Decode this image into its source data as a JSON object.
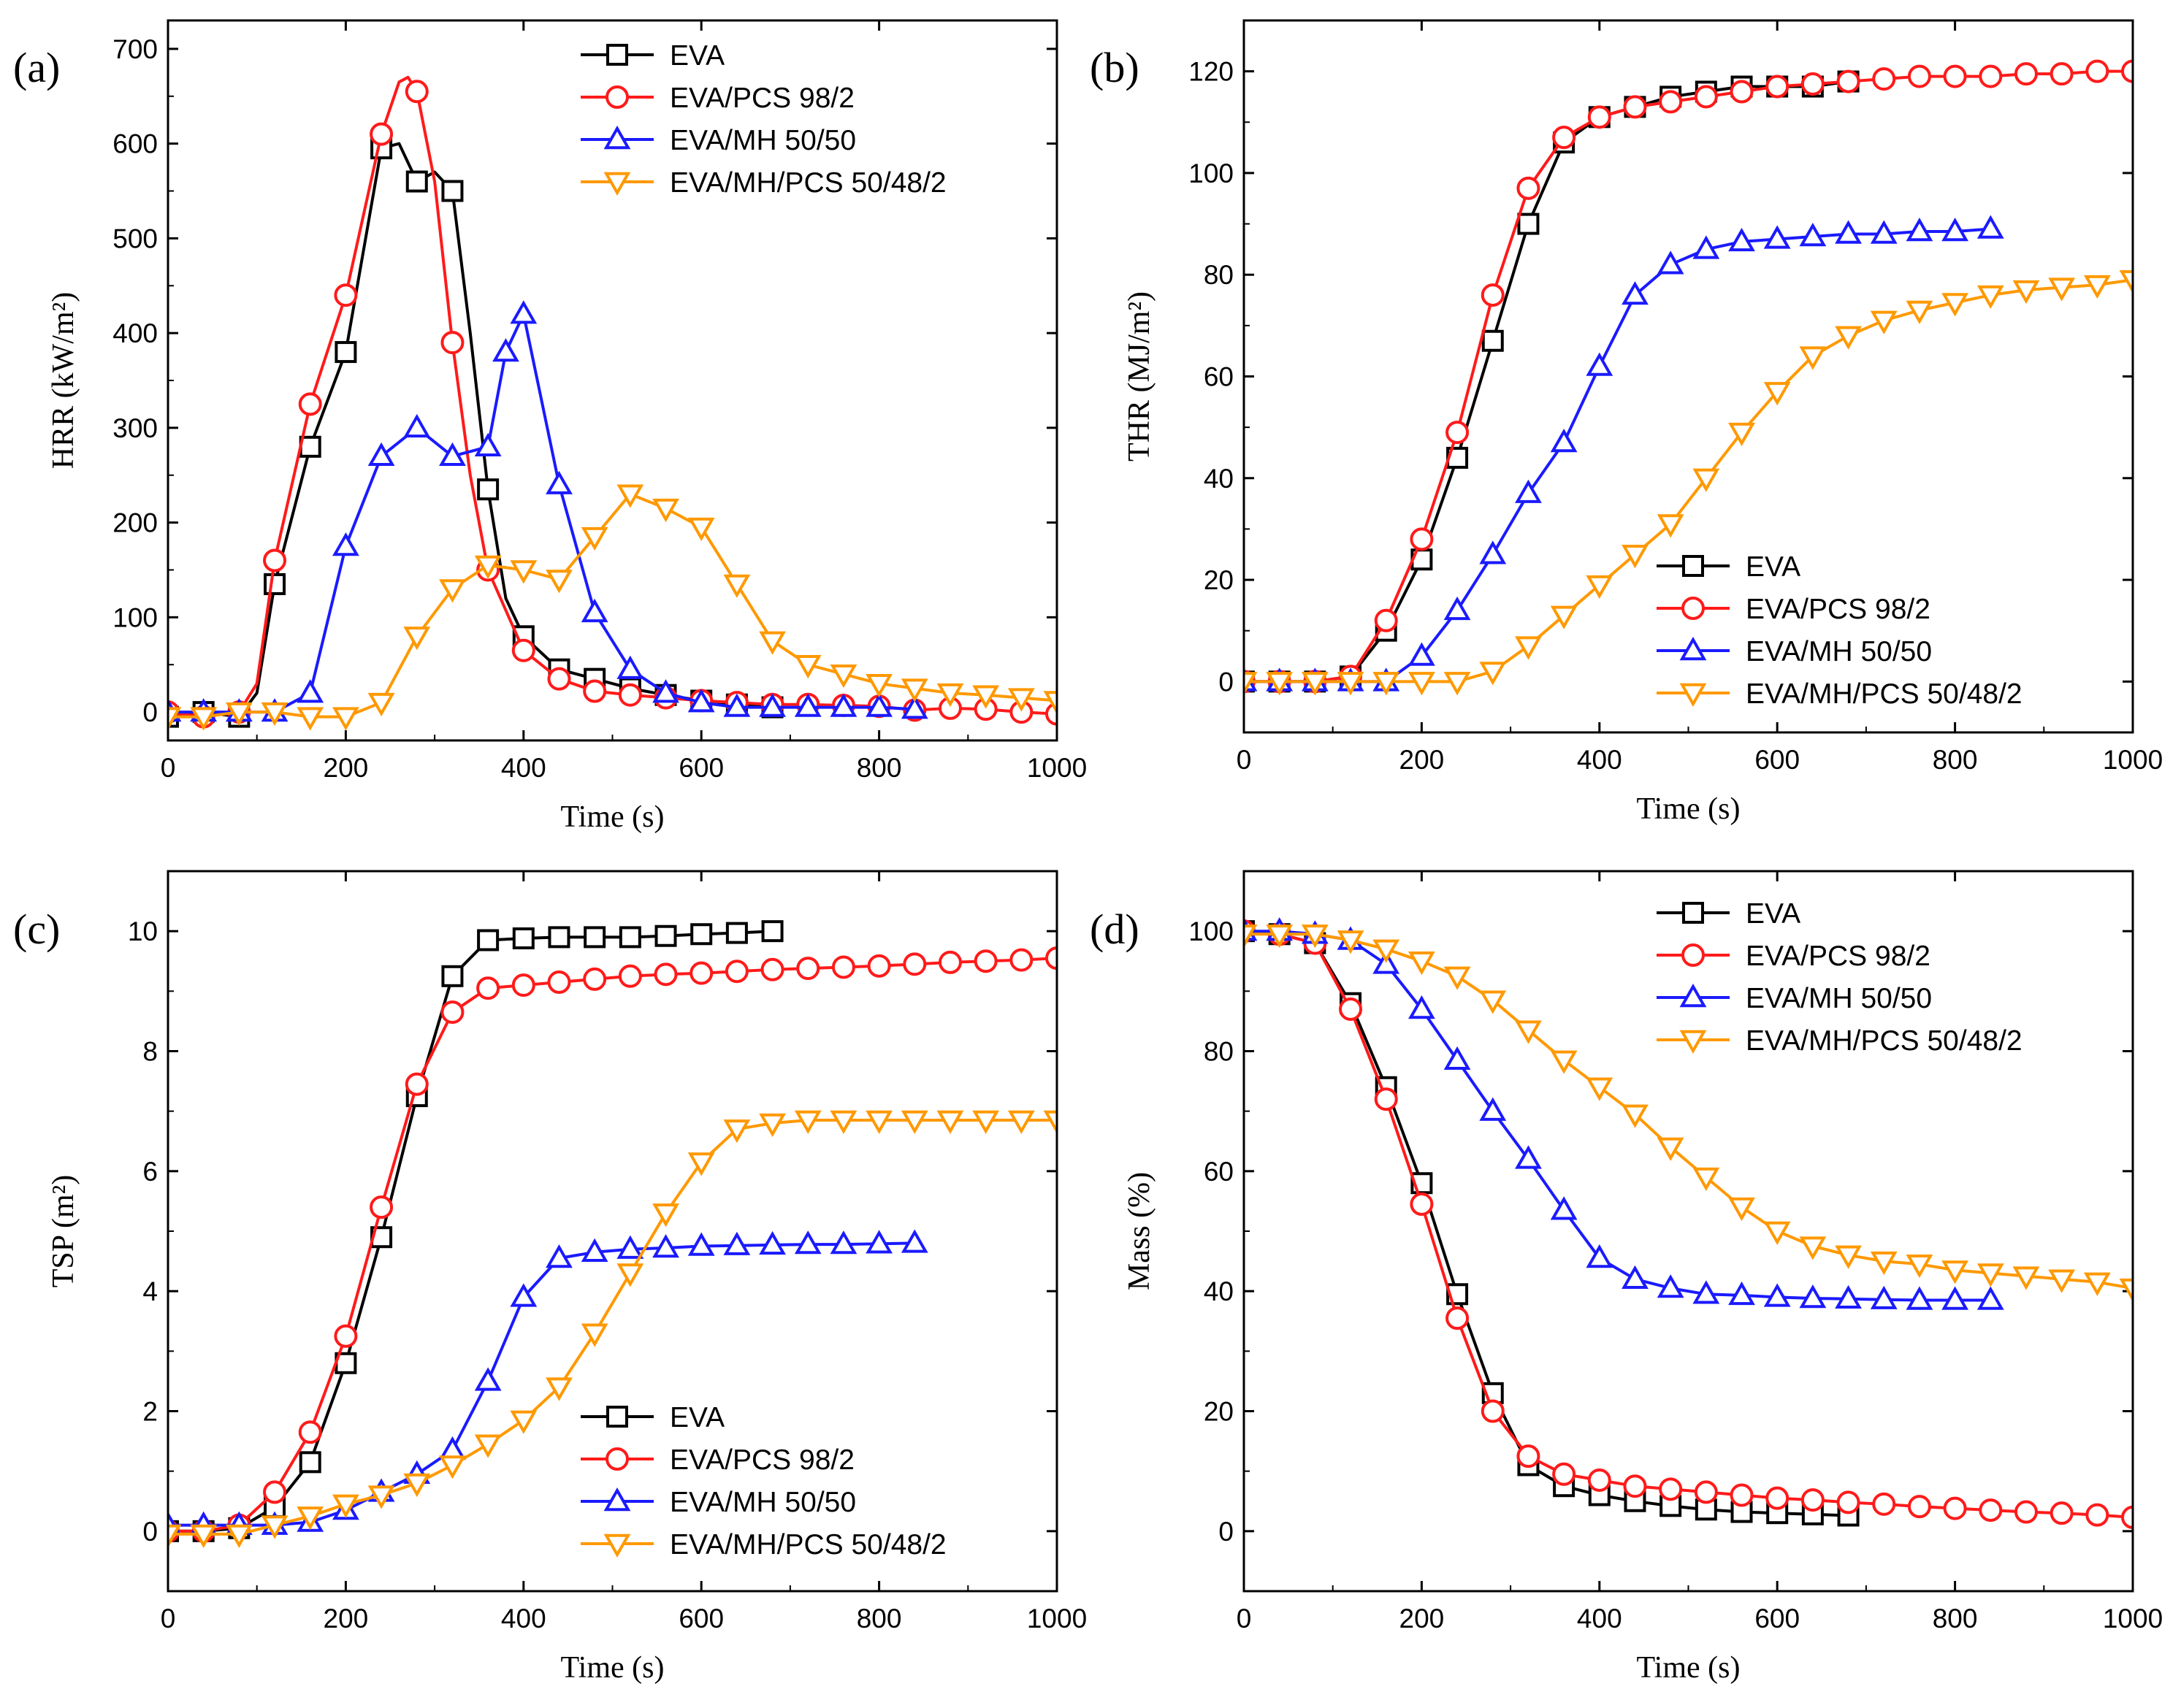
{
  "colors": {
    "EVA": "#000000",
    "EVA/PCS 98/2": "#ff1a1a",
    "EVA/MH 50/50": "#1a1aff",
    "EVA/MH/PCS 50/48/2": "#ff9900"
  },
  "chart_data": [
    {
      "type": "line",
      "panel": "(a)",
      "xlabel": "Time (s)",
      "ylabel": "HRR (kW/m²)",
      "xlim": [
        0,
        1000
      ],
      "ylim": [
        -30,
        730
      ],
      "xticks": [
        0,
        200,
        400,
        600,
        800,
        1000
      ],
      "yticks": [
        0,
        100,
        200,
        300,
        400,
        500,
        600,
        700
      ],
      "legend_position": "top-right",
      "series": [
        {
          "name": "EVA",
          "marker": "square",
          "x": [
            0,
            40,
            80,
            100,
            120,
            160,
            200,
            240,
            260,
            280,
            300,
            320,
            340,
            360,
            380,
            400,
            440,
            480,
            520,
            560,
            600,
            640,
            680
          ],
          "y": [
            -5,
            0,
            -5,
            20,
            135,
            280,
            380,
            595,
            600,
            560,
            570,
            550,
            400,
            235,
            120,
            80,
            45,
            35,
            25,
            18,
            12,
            8,
            5
          ],
          "marker_x": [
            0,
            40,
            80,
            120,
            160,
            200,
            240,
            280,
            320,
            360,
            400,
            440,
            480,
            520,
            560,
            600,
            640,
            680
          ]
        },
        {
          "name": "EVA/PCS 98/2",
          "marker": "circle",
          "x": [
            0,
            40,
            80,
            100,
            120,
            160,
            200,
            240,
            260,
            270,
            280,
            300,
            320,
            340,
            360,
            400,
            440,
            480,
            520,
            560,
            600,
            640,
            680,
            720,
            760,
            800,
            840,
            880,
            920,
            960,
            1000
          ],
          "y": [
            0,
            -5,
            0,
            30,
            160,
            325,
            440,
            610,
            665,
            670,
            655,
            560,
            390,
            250,
            150,
            65,
            35,
            22,
            18,
            15,
            12,
            10,
            8,
            8,
            7,
            6,
            2,
            4,
            3,
            0,
            -2
          ],
          "marker_x": [
            0,
            40,
            80,
            120,
            160,
            200,
            240,
            280,
            320,
            360,
            400,
            440,
            480,
            520,
            560,
            600,
            640,
            680,
            720,
            760,
            800,
            840,
            880,
            920,
            960,
            1000
          ]
        },
        {
          "name": "EVA/MH 50/50",
          "marker": "triangle-up",
          "x": [
            0,
            40,
            80,
            120,
            160,
            200,
            240,
            280,
            320,
            360,
            380,
            400,
            440,
            480,
            520,
            560,
            600,
            640,
            680,
            720,
            760,
            800,
            840
          ],
          "y": [
            0,
            0,
            0,
            0,
            20,
            175,
            270,
            300,
            270,
            280,
            380,
            420,
            240,
            105,
            45,
            20,
            10,
            5,
            5,
            5,
            5,
            5,
            3
          ]
        },
        {
          "name": "EVA/MH/PCS 50/48/2",
          "marker": "triangle-down",
          "x": [
            0,
            40,
            80,
            120,
            160,
            200,
            240,
            280,
            320,
            360,
            400,
            440,
            480,
            520,
            560,
            600,
            640,
            680,
            720,
            760,
            800,
            840,
            880,
            920,
            960,
            1000
          ],
          "y": [
            -5,
            -5,
            0,
            0,
            -5,
            -5,
            10,
            80,
            130,
            155,
            150,
            140,
            185,
            230,
            215,
            195,
            135,
            75,
            50,
            40,
            30,
            25,
            20,
            18,
            15,
            12
          ]
        }
      ]
    },
    {
      "type": "line",
      "panel": "(b)",
      "xlabel": "Time (s)",
      "ylabel": "THR (MJ/m²)",
      "xlim": [
        0,
        1000
      ],
      "ylim": [
        -10,
        130
      ],
      "xticks": [
        0,
        200,
        400,
        600,
        800,
        1000
      ],
      "yticks": [
        0,
        20,
        40,
        60,
        80,
        100,
        120
      ],
      "legend_position": "bottom-right",
      "series": [
        {
          "name": "EVA",
          "marker": "square",
          "x": [
            0,
            40,
            80,
            120,
            160,
            200,
            240,
            280,
            320,
            360,
            400,
            440,
            480,
            520,
            560,
            600,
            640,
            680
          ],
          "y": [
            0,
            0,
            0,
            1,
            10,
            24,
            44,
            67,
            90,
            106,
            111,
            113,
            115,
            116,
            117,
            117,
            117,
            118
          ]
        },
        {
          "name": "EVA/PCS 98/2",
          "marker": "circle",
          "x": [
            0,
            40,
            80,
            120,
            160,
            200,
            240,
            280,
            320,
            360,
            400,
            440,
            480,
            520,
            560,
            600,
            640,
            680,
            720,
            760,
            800,
            840,
            880,
            920,
            960,
            1000
          ],
          "y": [
            0,
            0,
            0,
            1,
            12,
            28,
            49,
            76,
            97,
            107,
            111,
            113,
            114,
            115,
            116,
            117,
            117.5,
            118,
            118.5,
            119,
            119,
            119,
            119.5,
            119.5,
            120,
            120
          ]
        },
        {
          "name": "EVA/MH 50/50",
          "marker": "triangle-up",
          "x": [
            0,
            40,
            80,
            120,
            160,
            200,
            240,
            280,
            320,
            360,
            400,
            440,
            480,
            520,
            560,
            600,
            640,
            680,
            720,
            760,
            800,
            840
          ],
          "y": [
            0,
            0,
            0,
            0,
            0,
            5,
            14,
            25,
            37,
            47,
            62,
            76,
            82,
            85,
            86.5,
            87,
            87.5,
            88,
            88,
            88.5,
            88.5,
            89
          ]
        },
        {
          "name": "EVA/MH/PCS 50/48/2",
          "marker": "triangle-down",
          "x": [
            0,
            40,
            80,
            120,
            160,
            200,
            240,
            280,
            320,
            360,
            400,
            440,
            480,
            520,
            560,
            600,
            640,
            680,
            720,
            760,
            800,
            840,
            880,
            920,
            960,
            1000
          ],
          "y": [
            0,
            0,
            0,
            0,
            0,
            0,
            0,
            2,
            7,
            13,
            19,
            25,
            31,
            40,
            49,
            57,
            64,
            68,
            71,
            73,
            74.5,
            76,
            77,
            77.5,
            78,
            79
          ]
        }
      ]
    },
    {
      "type": "line",
      "panel": "(c)",
      "xlabel": "Time (s)",
      "ylabel": "TSP (m²)",
      "xlim": [
        0,
        1000
      ],
      "ylim": [
        -1,
        11
      ],
      "xticks": [
        0,
        200,
        400,
        600,
        800,
        1000
      ],
      "yticks": [
        0,
        2,
        4,
        6,
        8,
        10
      ],
      "legend_position": "bottom-right",
      "series": [
        {
          "name": "EVA",
          "marker": "square",
          "x": [
            0,
            40,
            80,
            120,
            160,
            200,
            240,
            280,
            320,
            360,
            400,
            440,
            480,
            520,
            560,
            600,
            640,
            680
          ],
          "y": [
            0,
            0,
            0.05,
            0.4,
            1.15,
            2.8,
            4.9,
            7.25,
            9.25,
            9.85,
            9.88,
            9.9,
            9.9,
            9.9,
            9.92,
            9.95,
            9.97,
            10
          ]
        },
        {
          "name": "EVA/PCS 98/2",
          "marker": "circle",
          "x": [
            0,
            40,
            80,
            120,
            160,
            200,
            240,
            280,
            320,
            360,
            400,
            440,
            480,
            520,
            560,
            600,
            640,
            680,
            720,
            760,
            800,
            840,
            880,
            920,
            960,
            1000
          ],
          "y": [
            0,
            0,
            0.1,
            0.65,
            1.65,
            3.25,
            5.4,
            7.45,
            8.65,
            9.05,
            9.1,
            9.15,
            9.2,
            9.25,
            9.28,
            9.3,
            9.33,
            9.36,
            9.38,
            9.4,
            9.42,
            9.45,
            9.48,
            9.5,
            9.52,
            9.55
          ]
        },
        {
          "name": "EVA/MH 50/50",
          "marker": "triangle-up",
          "x": [
            0,
            40,
            80,
            120,
            160,
            200,
            240,
            280,
            320,
            360,
            400,
            440,
            480,
            520,
            560,
            600,
            640,
            680,
            720,
            760,
            800,
            840
          ],
          "y": [
            0.1,
            0.1,
            0.1,
            0.1,
            0.15,
            0.35,
            0.65,
            0.95,
            1.35,
            2.5,
            3.9,
            4.55,
            4.65,
            4.7,
            4.72,
            4.75,
            4.76,
            4.77,
            4.78,
            4.78,
            4.79,
            4.8
          ]
        },
        {
          "name": "EVA/MH/PCS 50/48/2",
          "marker": "triangle-down",
          "x": [
            0,
            40,
            80,
            120,
            160,
            200,
            240,
            280,
            320,
            360,
            400,
            440,
            480,
            520,
            560,
            600,
            640,
            680,
            720,
            760,
            800,
            840,
            880,
            920,
            960,
            1000
          ],
          "y": [
            -0.05,
            -0.05,
            -0.05,
            0.1,
            0.25,
            0.45,
            0.6,
            0.8,
            1.1,
            1.45,
            1.85,
            2.4,
            3.3,
            4.3,
            5.3,
            6.15,
            6.7,
            6.8,
            6.85,
            6.85,
            6.85,
            6.85,
            6.85,
            6.85,
            6.85,
            6.85
          ]
        }
      ]
    },
    {
      "type": "line",
      "panel": "(d)",
      "xlabel": "Time (s)",
      "ylabel": "Mass (%)",
      "xlim": [
        0,
        1000
      ],
      "ylim": [
        -10,
        110
      ],
      "xticks": [
        0,
        200,
        400,
        600,
        800,
        1000
      ],
      "yticks": [
        0,
        20,
        40,
        60,
        80,
        100
      ],
      "legend_position": "top-right",
      "series": [
        {
          "name": "EVA",
          "marker": "square",
          "x": [
            0,
            40,
            80,
            120,
            160,
            200,
            240,
            280,
            320,
            360,
            400,
            440,
            480,
            520,
            560,
            600,
            640,
            680
          ],
          "y": [
            100,
            99.5,
            98,
            88,
            74,
            58,
            39.5,
            23,
            11,
            7.5,
            6,
            5,
            4.2,
            3.6,
            3.2,
            3,
            2.8,
            2.6
          ]
        },
        {
          "name": "EVA/PCS 98/2",
          "marker": "circle",
          "x": [
            0,
            40,
            80,
            120,
            160,
            200,
            240,
            280,
            320,
            360,
            400,
            440,
            480,
            520,
            560,
            600,
            640,
            680,
            720,
            760,
            800,
            840,
            880,
            920,
            960,
            1000
          ],
          "y": [
            100,
            99.5,
            98,
            87,
            72,
            54.5,
            35.5,
            20,
            12.5,
            9.5,
            8.5,
            7.5,
            7,
            6.5,
            6,
            5.5,
            5.2,
            4.8,
            4.5,
            4.1,
            3.8,
            3.5,
            3.2,
            3,
            2.7,
            2.3
          ]
        },
        {
          "name": "EVA/MH 50/50",
          "marker": "triangle-up",
          "x": [
            0,
            40,
            80,
            120,
            160,
            200,
            240,
            280,
            320,
            360,
            400,
            440,
            480,
            520,
            560,
            600,
            640,
            680,
            720,
            760,
            800,
            840
          ],
          "y": [
            100,
            100,
            99.5,
            98.5,
            94.5,
            87,
            78.5,
            70,
            62,
            53.5,
            45.5,
            42,
            40.5,
            39.5,
            39.3,
            39,
            38.8,
            38.7,
            38.6,
            38.5,
            38.5,
            38.5
          ]
        },
        {
          "name": "EVA/MH/PCS 50/48/2",
          "marker": "triangle-down",
          "x": [
            0,
            40,
            80,
            120,
            160,
            200,
            240,
            280,
            320,
            360,
            400,
            440,
            480,
            520,
            560,
            600,
            640,
            680,
            720,
            760,
            800,
            840,
            880,
            920,
            960,
            1000
          ],
          "y": [
            99.5,
            99.5,
            99.5,
            98.5,
            97,
            95,
            92.5,
            88.5,
            83.5,
            78.5,
            74,
            69.5,
            64,
            59,
            54,
            50,
            47.5,
            46,
            45,
            44.5,
            43.5,
            43,
            42.5,
            42,
            41.5,
            40.5
          ]
        }
      ]
    }
  ]
}
